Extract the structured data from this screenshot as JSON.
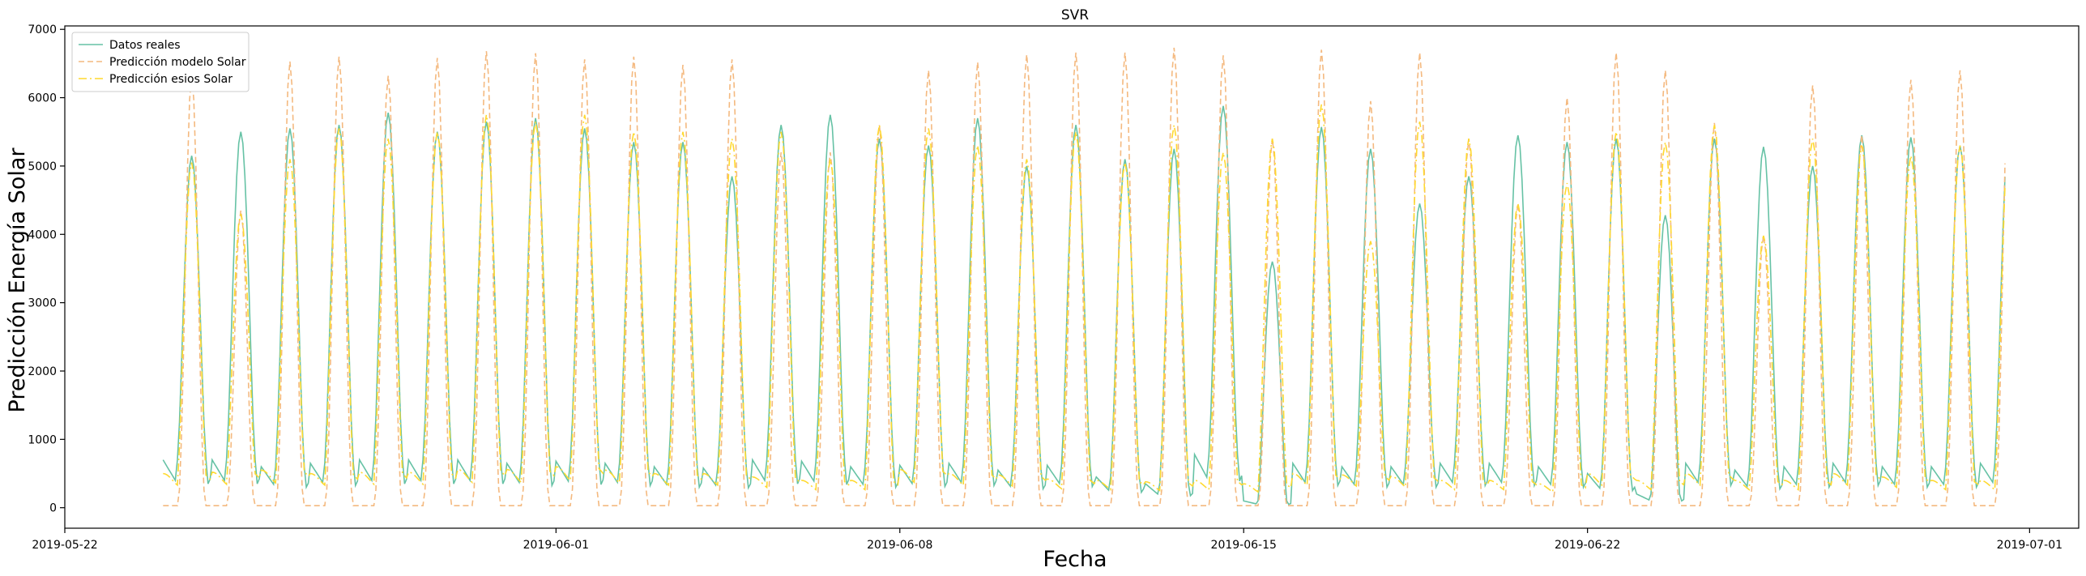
{
  "chart_data": {
    "type": "line",
    "title": "SVR",
    "xlabel": "Fecha",
    "ylabel": "Predicción Energía Solar",
    "xlim": [
      "2019-05-22",
      "2019-07-02"
    ],
    "ylim": [
      -300,
      7050
    ],
    "x_ticks": [
      "2019-05-22",
      "2019-06-01",
      "2019-06-08",
      "2019-06-15",
      "2019-06-22",
      "2019-07-01"
    ],
    "y_ticks": [
      0,
      1000,
      2000,
      3000,
      4000,
      5000,
      6000,
      7000
    ],
    "legend": "top-left",
    "grid": false,
    "x_start": "2019-05-24",
    "x_end": "2019-06-30",
    "series": [
      {
        "name": "Datos reales",
        "color": "#66c2a5",
        "style": "solid",
        "daily_peaks": [
          5150,
          5500,
          5550,
          5600,
          5780,
          5500,
          5650,
          5700,
          5550,
          5350,
          5350,
          4850,
          5600,
          5750,
          5400,
          5300,
          5700,
          5000,
          5600,
          5100,
          5250,
          5880,
          3600,
          5570,
          5250,
          4450,
          4850,
          5450,
          5350,
          5400,
          4280,
          5400,
          5280,
          5000,
          5450,
          5420,
          5300,
          5500,
          5450
        ],
        "daily_night": [
          700,
          700,
          600,
          650,
          700,
          700,
          700,
          650,
          680,
          650,
          600,
          580,
          700,
          680,
          600,
          620,
          650,
          550,
          620,
          450,
          350,
          780,
          100,
          650,
          600,
          600,
          650,
          650,
          600,
          500,
          200,
          650,
          550,
          600,
          650,
          600,
          600,
          650,
          700
        ]
      },
      {
        "name": "Predicción modelo Solar",
        "color": "#f4b97f",
        "style": "dashed",
        "daily_peaks": [
          6320,
          4350,
          6530,
          6600,
          6320,
          6580,
          6680,
          6650,
          6560,
          6600,
          6480,
          6560,
          5200,
          5200,
          5600,
          6400,
          6520,
          6630,
          6660,
          6660,
          6730,
          6620,
          5400,
          6700,
          5950,
          6660,
          5400,
          4450,
          6000,
          6660,
          6400,
          5630,
          3980,
          6180,
          5450,
          6260,
          6400,
          6330,
          6450
        ],
        "daily_night": [
          30,
          30,
          30,
          30,
          30,
          30,
          30,
          30,
          30,
          30,
          30,
          30,
          30,
          30,
          30,
          30,
          30,
          30,
          30,
          30,
          30,
          30,
          30,
          30,
          30,
          30,
          30,
          30,
          30,
          30,
          30,
          30,
          30,
          30,
          30,
          30,
          30,
          30,
          30
        ]
      },
      {
        "name": "Predicción esios Solar",
        "color": "#ffd92f",
        "style": "dashdot",
        "daily_peaks": [
          5050,
          4300,
          5100,
          5550,
          5400,
          5500,
          5750,
          5650,
          5750,
          5500,
          5500,
          5400,
          5500,
          5100,
          5600,
          5550,
          5300,
          5100,
          5500,
          5050,
          5600,
          5200,
          5400,
          5900,
          3900,
          5650,
          5400,
          4450,
          4750,
          5500,
          5350,
          5600,
          3980,
          5400,
          5300,
          5150,
          5300,
          5400,
          5350
        ],
        "daily_night": [
          500,
          520,
          550,
          500,
          520,
          520,
          560,
          560,
          600,
          550,
          500,
          500,
          450,
          400,
          400,
          560,
          500,
          480,
          420,
          400,
          380,
          400,
          350,
          500,
          480,
          460,
          400,
          400,
          350,
          500,
          400,
          500,
          400,
          400,
          500,
          450,
          400,
          400,
          400
        ]
      }
    ]
  }
}
